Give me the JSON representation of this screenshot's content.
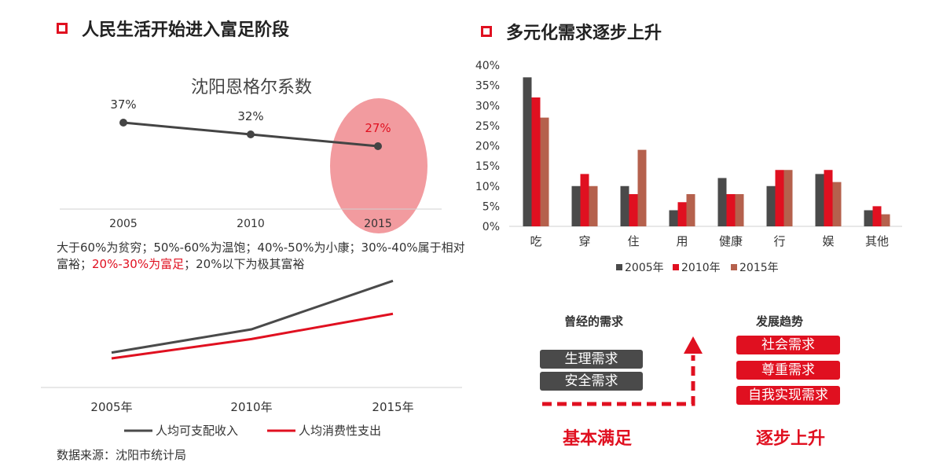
{
  "left": {
    "title": "人民生活开始进入富足阶段",
    "description": {
      "part1": "大于60%为贫穷；50%-60%为温饱；40%-50%为小康；30%-40%属于相对富裕；",
      "highlight": "20%-30%为富足",
      "part2": "；20%以下为极其富裕"
    },
    "source": "数据来源：沈阳市统计局"
  },
  "right": {
    "title": "多元化需求逐步上升",
    "past_heading": "曾经的需求",
    "trend_heading": "发展趋势",
    "past_needs": [
      "生理需求",
      "安全需求"
    ],
    "trend_needs": [
      "社会需求",
      "尊重需求",
      "自我实现需求"
    ],
    "bottom_left": "基本满足",
    "bottom_right": "逐步上升"
  },
  "colors": {
    "red": "#e01020",
    "dark": "#4a4a4a",
    "brown": "#b5614d",
    "pink": "#f08a8e"
  },
  "chart_data": [
    {
      "type": "line",
      "title": "沈阳恩格尔系数",
      "categories": [
        "2005",
        "2010",
        "2015"
      ],
      "series": [
        {
          "values": [
            37,
            32,
            27
          ]
        }
      ],
      "data_labels": [
        "37%",
        "32%",
        "27%"
      ],
      "highlight_index": 2
    },
    {
      "type": "line",
      "categories": [
        "2005年",
        "2010年",
        "2015年"
      ],
      "series": [
        {
          "name": "人均可支配收入",
          "values": [
            18,
            30,
            55
          ],
          "color": "#4a4a4a"
        },
        {
          "name": "人均消费性支出",
          "values": [
            15,
            25,
            38
          ],
          "color": "#e01020"
        }
      ],
      "ylim": [
        0,
        60
      ],
      "legend": "bottom"
    },
    {
      "type": "bar",
      "categories": [
        "吃",
        "穿",
        "住",
        "用",
        "健康",
        "行",
        "娱",
        "其他"
      ],
      "series": [
        {
          "name": "2005年",
          "values": [
            37,
            10,
            10,
            4,
            12,
            10,
            13,
            4
          ],
          "color": "#4a4a4a"
        },
        {
          "name": "2010年",
          "values": [
            32,
            13,
            8,
            6,
            8,
            14,
            14,
            5
          ],
          "color": "#e01020"
        },
        {
          "name": "2015年",
          "values": [
            27,
            10,
            19,
            8,
            8,
            14,
            11,
            3
          ],
          "color": "#b5614d"
        }
      ],
      "ylim": [
        0,
        40
      ],
      "yticks": [
        "0%",
        "5%",
        "10%",
        "15%",
        "20%",
        "25%",
        "30%",
        "35%",
        "40%"
      ],
      "legend": "bottom"
    }
  ]
}
